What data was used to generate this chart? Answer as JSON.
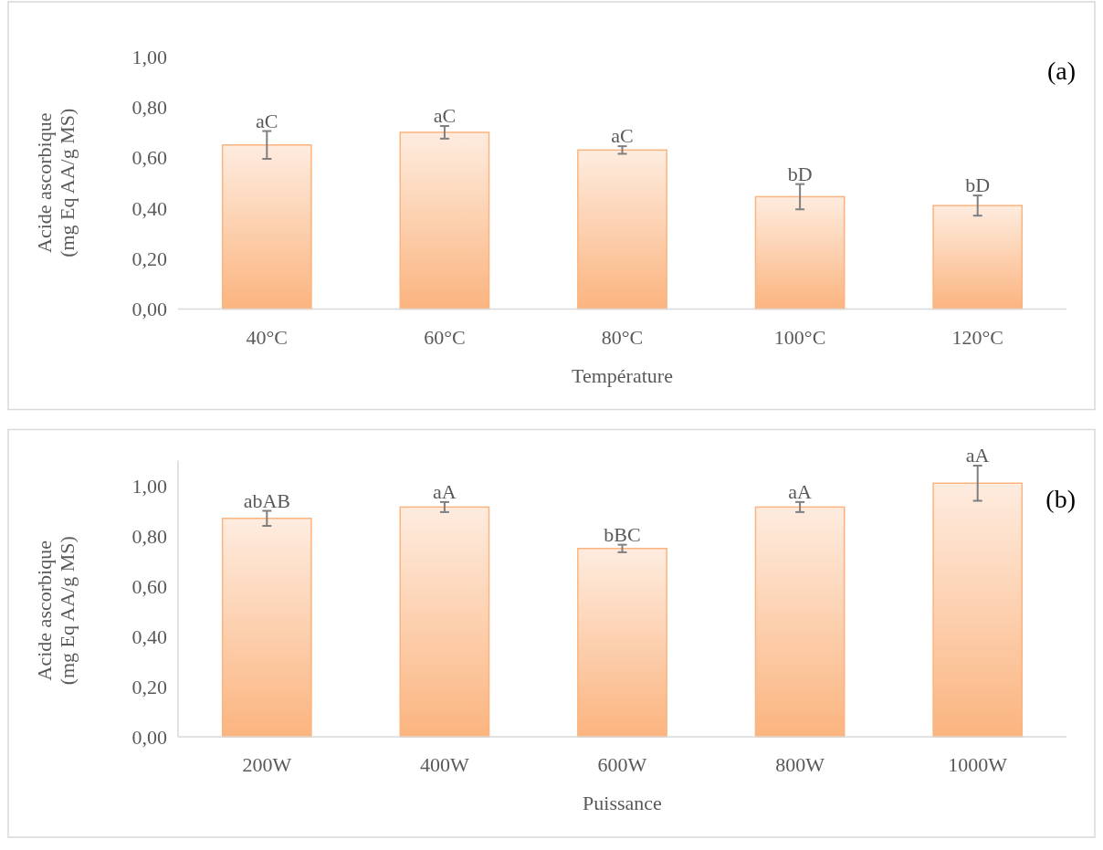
{
  "chart_data": [
    {
      "type": "bar",
      "xlabel": "Température",
      "ylabel": "Acide ascorbique\n(mg Eq AA/g  MS)",
      "categories": [
        "40°C",
        "60°C",
        "80°C",
        "100°C",
        "120°C"
      ],
      "values": [
        0.65,
        0.7,
        0.63,
        0.445,
        0.41
      ],
      "errors": [
        0.055,
        0.025,
        0.015,
        0.05,
        0.04
      ],
      "color": "#fbb47f",
      "ylim": [
        0,
        1.0
      ],
      "yticks": [
        {
          "value": 0,
          "label": "0,00"
        },
        {
          "value": 0.2,
          "label": "0,20"
        },
        {
          "value": 0.4,
          "label": "0,40"
        },
        {
          "value": 0.6,
          "label": "0,60"
        },
        {
          "value": 0.8,
          "label": "0,80"
        },
        {
          "value": 1.0,
          "label": "1,00"
        }
      ],
      "grid": false,
      "annotations": [
        {
          "text": "aC",
          "x": "40°C",
          "y": 0.705
        },
        {
          "text": "aC",
          "x": "60°C",
          "y": 0.725
        },
        {
          "text": "aC",
          "x": "80°C",
          "y": 0.645
        },
        {
          "text": "bD",
          "x": "100°C",
          "y": 0.495
        },
        {
          "text": "bD",
          "x": "120°C",
          "y": 0.45
        },
        "(a)"
      ]
    },
    {
      "type": "bar",
      "xlabel": "Puissance",
      "ylabel": "Acide ascorbique\n(mg Eq AA/g  MS)",
      "categories": [
        "200W",
        "400W",
        "600W",
        "800W",
        "1000W"
      ],
      "values": [
        0.87,
        0.915,
        0.75,
        0.915,
        1.01
      ],
      "errors": [
        0.03,
        0.02,
        0.015,
        0.02,
        0.07
      ],
      "color": "#fbb47f",
      "ylim": [
        0,
        1.1
      ],
      "yticks": [
        {
          "value": 0,
          "label": "0,00"
        },
        {
          "value": 0.2,
          "label": "0,20"
        },
        {
          "value": 0.4,
          "label": "0,40"
        },
        {
          "value": 0.6,
          "label": "0,60"
        },
        {
          "value": 0.8,
          "label": "0,80"
        },
        {
          "value": 1.0,
          "label": "1,00"
        }
      ],
      "grid": false,
      "annotations": [
        {
          "text": "abAB",
          "x": "200W",
          "y": 0.9
        },
        {
          "text": "aA",
          "x": "400W",
          "y": 0.935
        },
        {
          "text": "bBC",
          "x": "600W",
          "y": 0.765
        },
        {
          "text": "aA",
          "x": "800W",
          "y": 0.935
        },
        {
          "text": "aA",
          "x": "1000W",
          "y": 1.08
        },
        "(b)"
      ]
    }
  ]
}
